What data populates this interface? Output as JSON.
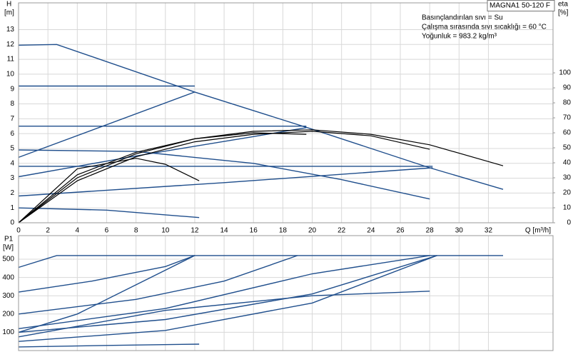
{
  "chart_data": [
    {
      "type": "line",
      "title": "MAGNA1 50-120 F",
      "annotations": [
        "Basınçlandırılan sıvı = Su",
        "Çalışma sırasında sıvı sıcaklığı = 60 °C",
        "Yoğunluk = 983.2 kg/m³"
      ],
      "y_label": "H",
      "y_unit": "[m]",
      "y2_label": "eta",
      "y2_unit": "[%]",
      "x_label": "Q [m³/h]",
      "xlim": [
        0,
        36.4
      ],
      "xticks": [
        0,
        2,
        4,
        6,
        8,
        10,
        12,
        14,
        16,
        18,
        20,
        22,
        24,
        26,
        28,
        30,
        32
      ],
      "ylim": [
        0,
        14.8
      ],
      "yticks": [
        0,
        1,
        2,
        3,
        4,
        5,
        6,
        7,
        8,
        9,
        10,
        11,
        12,
        13
      ],
      "y2lim": [
        0,
        146.7
      ],
      "y2ticks": [
        0,
        10,
        20,
        30,
        40,
        50,
        60,
        70,
        80,
        90,
        100
      ],
      "grid": true,
      "series": [
        {
          "color": "#1f4e8c",
          "x": [
            0,
            2.6,
            12,
            20,
            28,
            33
          ],
          "values": [
            11.95,
            12,
            8.8,
            6.3,
            3.7,
            2.25
          ]
        },
        {
          "color": "#1f4e8c",
          "x": [
            0,
            12
          ],
          "values": [
            9.2,
            9.2
          ]
        },
        {
          "color": "#1f4e8c",
          "x": [
            0,
            19.6
          ],
          "values": [
            6.5,
            6.5
          ]
        },
        {
          "color": "#1f4e8c",
          "x": [
            0,
            28.2
          ],
          "values": [
            3.8,
            3.8
          ]
        },
        {
          "color": "#1f4e8c",
          "x": [
            0,
            12
          ],
          "values": [
            4.4,
            8.8
          ]
        },
        {
          "color": "#1f4e8c",
          "x": [
            0,
            8,
            16,
            19.6
          ],
          "values": [
            3.1,
            4.5,
            5.8,
            6.4
          ]
        },
        {
          "color": "#1f4e8c",
          "x": [
            0,
            14,
            28.2
          ],
          "values": [
            1.8,
            2.7,
            3.7
          ]
        },
        {
          "color": "#1f4e8c",
          "x": [
            0,
            8,
            16,
            22,
            28
          ],
          "values": [
            4.9,
            4.8,
            4.0,
            2.9,
            1.6
          ]
        },
        {
          "color": "#1f4e8c",
          "x": [
            0,
            6,
            12.3
          ],
          "values": [
            1.0,
            0.85,
            0.35
          ]
        },
        {
          "color": "#000000",
          "axis": "y2",
          "x": [
            0,
            4,
            8,
            12,
            16,
            20,
            24,
            28,
            33
          ],
          "values": [
            0,
            32,
            47,
            56,
            61,
            62,
            59,
            52,
            38
          ]
        },
        {
          "color": "#000000",
          "axis": "y2",
          "x": [
            0,
            4,
            8,
            12,
            16,
            20,
            24,
            28
          ],
          "values": [
            0,
            28,
            44,
            54,
            59,
            61,
            58,
            49
          ]
        },
        {
          "color": "#000000",
          "axis": "y2",
          "x": [
            0,
            4,
            8,
            12,
            16,
            19.6
          ],
          "values": [
            0,
            30,
            46,
            56,
            60,
            59
          ]
        },
        {
          "color": "#000000",
          "axis": "y2",
          "x": [
            0,
            4,
            8,
            10,
            12.3
          ],
          "values": [
            0,
            36,
            43,
            39,
            28
          ]
        }
      ]
    },
    {
      "type": "line",
      "y_label": "P1",
      "y_unit": "[W]",
      "xlim": [
        0,
        36.4
      ],
      "xticks": [
        0,
        2,
        4,
        6,
        8,
        10,
        12,
        14,
        16,
        18,
        20,
        22,
        24,
        26,
        28,
        30,
        32
      ],
      "xtick_labels": false,
      "ylim": [
        0,
        629
      ],
      "yticks": [
        100,
        200,
        300,
        400,
        500
      ],
      "grid": true,
      "series": [
        {
          "color": "#1f4e8c",
          "x": [
            0,
            2.6,
            33
          ],
          "values": [
            455,
            520,
            520
          ]
        },
        {
          "color": "#1f4e8c",
          "x": [
            0,
            5,
            10,
            12
          ],
          "values": [
            320,
            380,
            460,
            520
          ]
        },
        {
          "color": "#1f4e8c",
          "x": [
            0,
            8,
            14,
            19
          ],
          "values": [
            200,
            280,
            380,
            520
          ]
        },
        {
          "color": "#1f4e8c",
          "x": [
            0,
            4,
            8,
            12
          ],
          "values": [
            100,
            200,
            360,
            520
          ]
        },
        {
          "color": "#1f4e8c",
          "x": [
            0,
            10,
            20,
            28
          ],
          "values": [
            120,
            230,
            420,
            520
          ]
        },
        {
          "color": "#1f4e8c",
          "x": [
            0,
            10,
            20,
            28.5
          ],
          "values": [
            100,
            170,
            310,
            520
          ]
        },
        {
          "color": "#1f4e8c",
          "x": [
            0,
            10,
            20,
            28.5
          ],
          "values": [
            50,
            110,
            260,
            520
          ]
        },
        {
          "color": "#1f4e8c",
          "x": [
            0,
            10,
            20,
            28
          ],
          "values": [
            75,
            220,
            300,
            325
          ]
        },
        {
          "color": "#1f4e8c",
          "x": [
            0,
            6,
            12.3
          ],
          "values": [
            20,
            28,
            35
          ]
        }
      ]
    }
  ]
}
